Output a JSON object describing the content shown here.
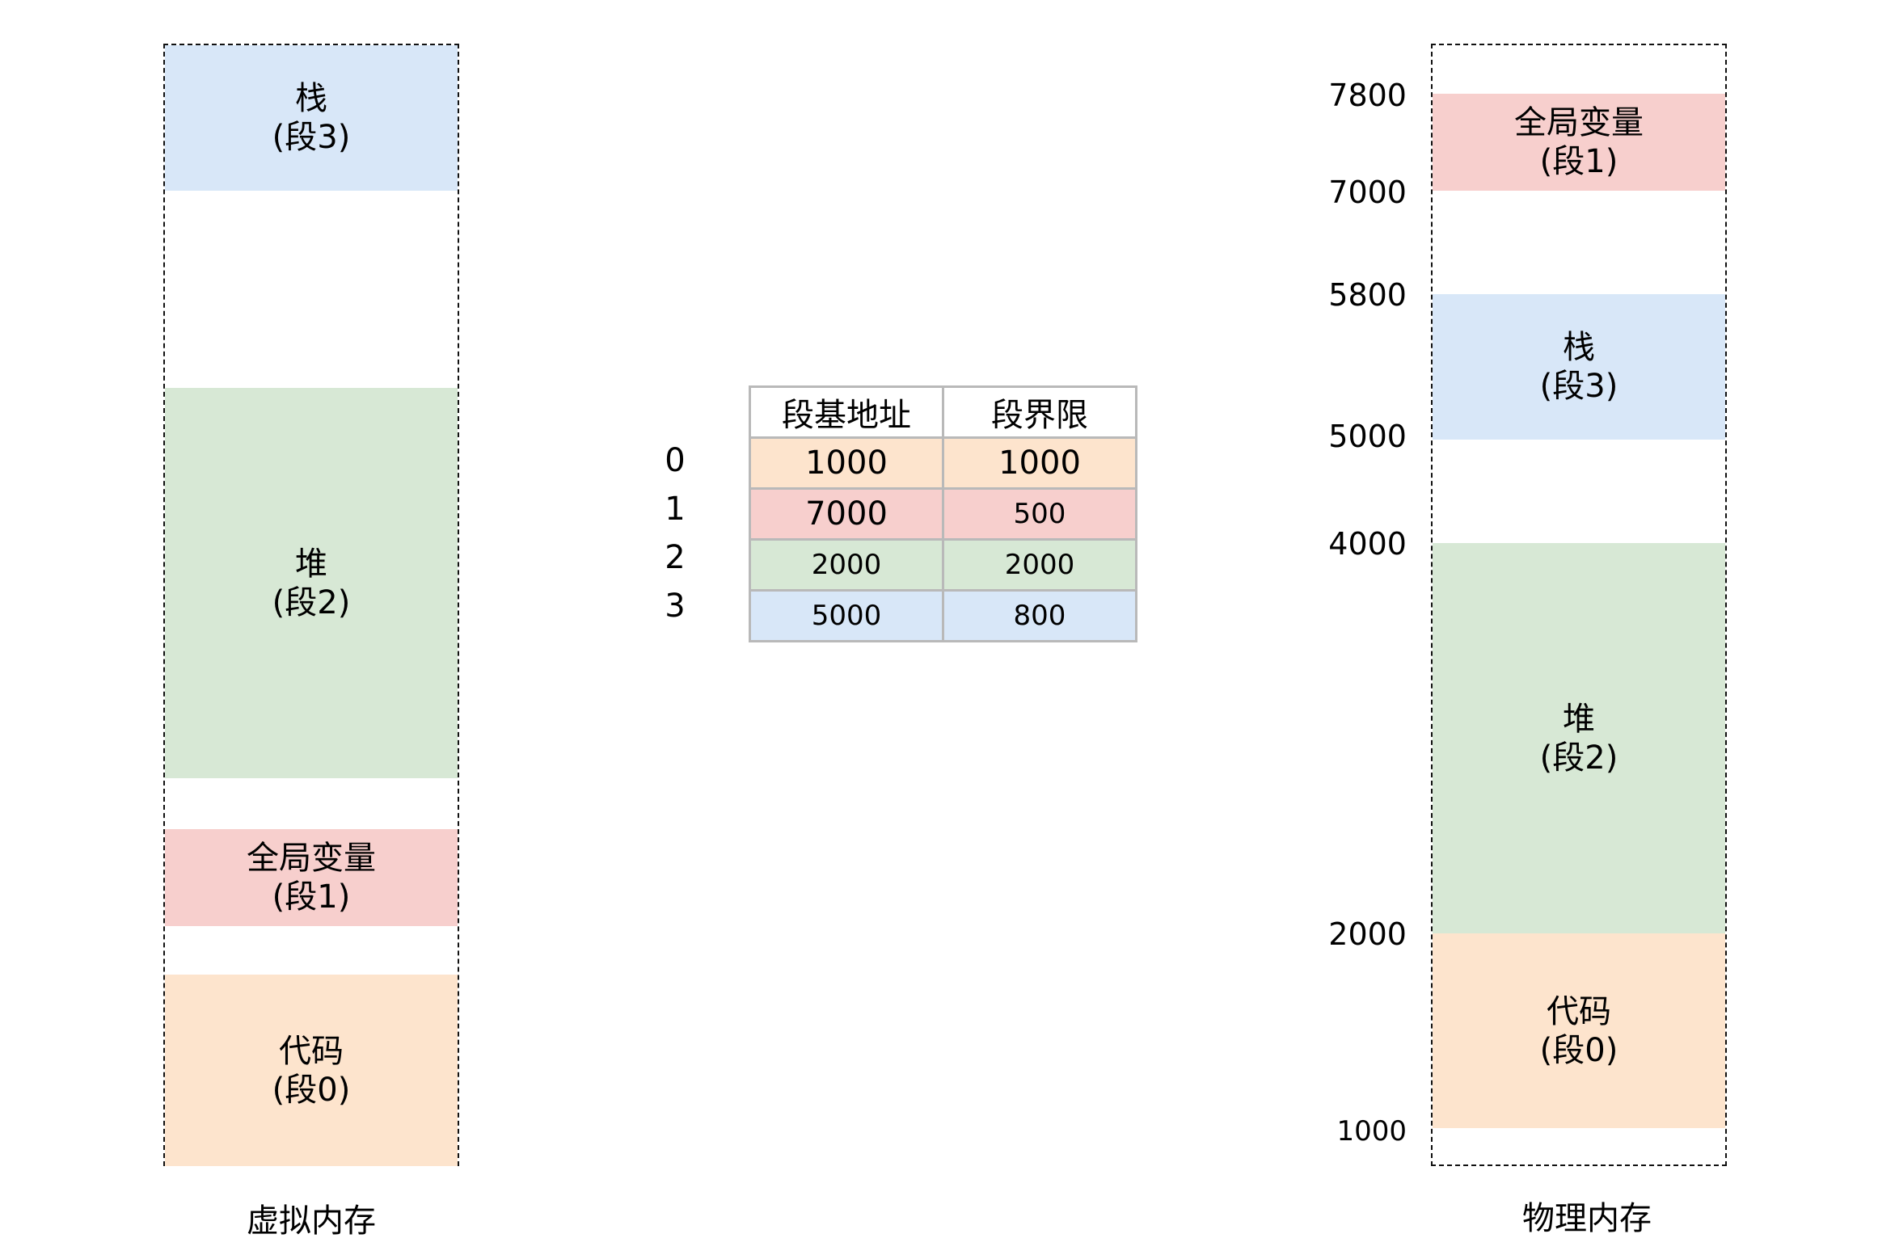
{
  "colors": {
    "code": "#fde4cd",
    "global": "#f7cfcd",
    "heap": "#d7e8d5",
    "stack": "#d8e7f8"
  },
  "virtual_memory": {
    "caption": "虚拟内存",
    "segments": [
      {
        "id": "stack",
        "name": "栈",
        "label": "(段3)"
      },
      {
        "id": "heap",
        "name": "堆",
        "label": "(段2)"
      },
      {
        "id": "global",
        "name": "全局变量",
        "label": "(段1)"
      },
      {
        "id": "code",
        "name": "代码",
        "label": "(段0)"
      }
    ]
  },
  "physical_memory": {
    "caption": "物理内存",
    "addresses": [
      "7800",
      "7000",
      "5800",
      "5000",
      "4000",
      "2000",
      "1000"
    ],
    "segments": [
      {
        "id": "global",
        "name": "全局变量",
        "label": "(段1)"
      },
      {
        "id": "stack",
        "name": "栈",
        "label": "(段3)"
      },
      {
        "id": "heap",
        "name": "堆",
        "label": "(段2)"
      },
      {
        "id": "code",
        "name": "代码",
        "label": "(段0)"
      }
    ]
  },
  "segment_table": {
    "headers": [
      "段基地址",
      "段界限"
    ],
    "rows": [
      {
        "index": "0",
        "base": "1000",
        "limit": "1000"
      },
      {
        "index": "1",
        "base": "7000",
        "limit": "500"
      },
      {
        "index": "2",
        "base": "2000",
        "limit": "2000"
      },
      {
        "index": "3",
        "base": "5000",
        "limit": "800"
      }
    ]
  }
}
